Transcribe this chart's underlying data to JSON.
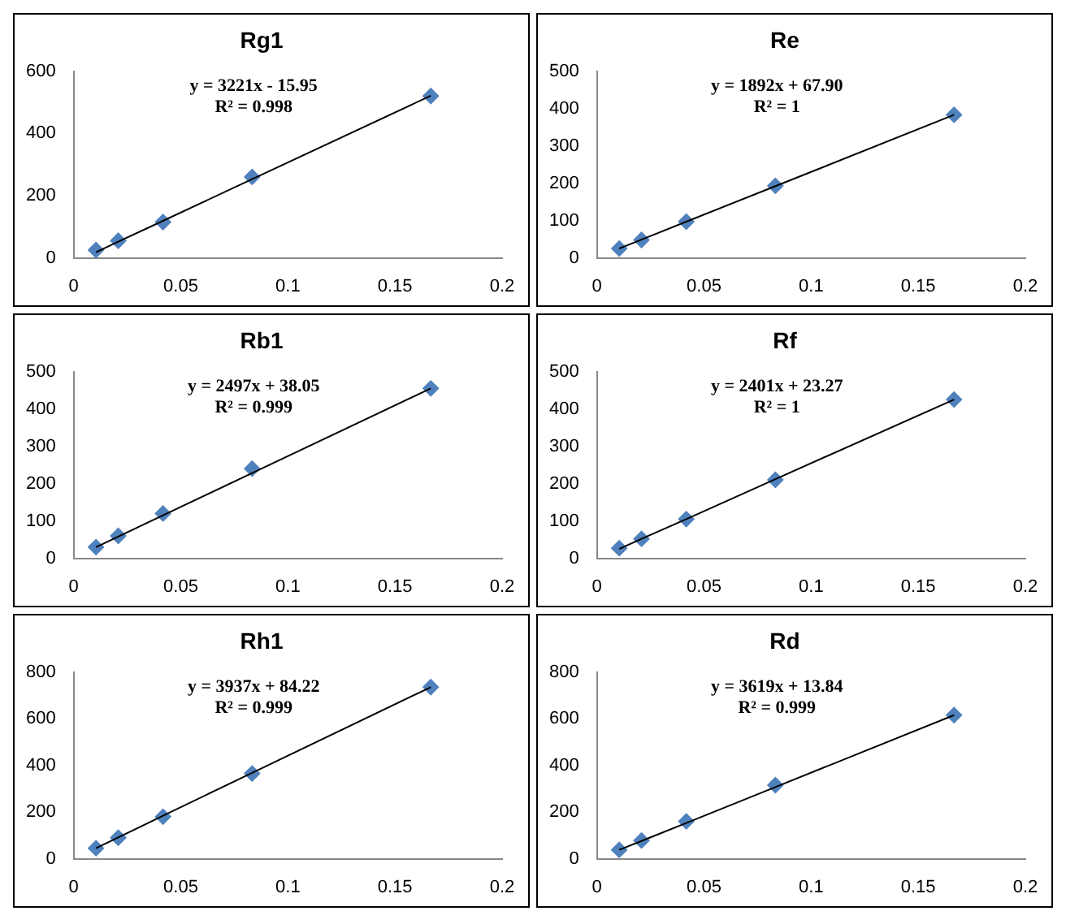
{
  "chart_data": [
    {
      "type": "scatter",
      "title": "Rg1",
      "x": [
        0.0104,
        0.0208,
        0.0417,
        0.0833,
        0.1667
      ],
      "xlim": [
        0,
        0.2
      ],
      "xticks": [
        0,
        0.05,
        0.1,
        0.15,
        0.2
      ],
      "ylim": [
        0,
        600
      ],
      "yticks": [
        0,
        200,
        400,
        600
      ],
      "grid": false,
      "legend": false,
      "marker": "diamond",
      "annotations": [
        "y = 3221x - 15.95",
        "R² = 0.998"
      ],
      "series": [
        {
          "color": "#4f81bd",
          "values": [
            25,
            55,
            115,
            260,
            520
          ]
        },
        {
          "type": "line",
          "values": [
            18,
            52,
            119,
            253,
            521
          ],
          "color": "#000000",
          "marker": "none"
        }
      ]
    },
    {
      "type": "scatter",
      "title": "Re",
      "x": [
        0.0104,
        0.0208,
        0.0417,
        0.0833,
        0.1667
      ],
      "xlim": [
        0,
        0.2
      ],
      "xticks": [
        0,
        0.05,
        0.1,
        0.15,
        0.2
      ],
      "ylim": [
        0,
        500
      ],
      "yticks": [
        0,
        100,
        200,
        300,
        400,
        500
      ],
      "grid": false,
      "legend": false,
      "marker": "diamond",
      "annotations": [
        "y = 1892x + 67.90",
        "R² = 1"
      ],
      "series": [
        {
          "color": "#4f81bd",
          "values": [
            25,
            48,
            97,
            193,
            383
          ]
        },
        {
          "type": "line",
          "values": [
            25,
            49,
            97,
            192,
            383
          ],
          "color": "#000000",
          "marker": "none"
        }
      ]
    },
    {
      "type": "scatter",
      "title": "Rb1",
      "x": [
        0.0104,
        0.0208,
        0.0417,
        0.0833,
        0.1667
      ],
      "xlim": [
        0,
        0.2
      ],
      "xticks": [
        0,
        0.05,
        0.1,
        0.15,
        0.2
      ],
      "ylim": [
        0,
        500
      ],
      "yticks": [
        0,
        100,
        200,
        300,
        400,
        500
      ],
      "grid": false,
      "legend": false,
      "marker": "diamond",
      "annotations": [
        "y = 2497x + 38.05",
        "R² = 0.999"
      ],
      "series": [
        {
          "color": "#4f81bd",
          "values": [
            30,
            60,
            120,
            240,
            455
          ]
        },
        {
          "type": "line",
          "values": [
            30,
            58,
            115,
            228,
            455
          ],
          "color": "#000000",
          "marker": "none"
        }
      ]
    },
    {
      "type": "scatter",
      "title": "Rf",
      "x": [
        0.0104,
        0.0208,
        0.0417,
        0.0833,
        0.1667
      ],
      "xlim": [
        0,
        0.2
      ],
      "xticks": [
        0,
        0.05,
        0.1,
        0.15,
        0.2
      ],
      "ylim": [
        0,
        500
      ],
      "yticks": [
        0,
        100,
        200,
        300,
        400,
        500
      ],
      "grid": false,
      "legend": false,
      "marker": "diamond",
      "annotations": [
        "y = 2401x + 23.27",
        "R² = 1"
      ],
      "series": [
        {
          "color": "#4f81bd",
          "values": [
            27,
            52,
            105,
            210,
            425
          ]
        },
        {
          "type": "line",
          "values": [
            25,
            52,
            105,
            212,
            425
          ],
          "color": "#000000",
          "marker": "none"
        }
      ]
    },
    {
      "type": "scatter",
      "title": "Rh1",
      "x": [
        0.0104,
        0.0208,
        0.0417,
        0.0833,
        0.1667
      ],
      "xlim": [
        0,
        0.2
      ],
      "xticks": [
        0,
        0.05,
        0.1,
        0.15,
        0.2
      ],
      "ylim": [
        0,
        800
      ],
      "yticks": [
        0,
        200,
        400,
        600,
        800
      ],
      "grid": false,
      "legend": false,
      "marker": "diamond",
      "annotations": [
        "y = 3937x + 84.22",
        "R² = 0.999"
      ],
      "series": [
        {
          "color": "#4f81bd",
          "values": [
            45,
            90,
            180,
            365,
            735
          ]
        },
        {
          "type": "line",
          "values": [
            45,
            91,
            184,
            368,
            735
          ],
          "color": "#000000",
          "marker": "none"
        }
      ]
    },
    {
      "type": "scatter",
      "title": "Rd",
      "x": [
        0.0104,
        0.0208,
        0.0417,
        0.0833,
        0.1667
      ],
      "xlim": [
        0,
        0.2
      ],
      "xticks": [
        0,
        0.05,
        0.1,
        0.15,
        0.2
      ],
      "ylim": [
        0,
        800
      ],
      "yticks": [
        0,
        200,
        400,
        600,
        800
      ],
      "grid": false,
      "legend": false,
      "marker": "diamond",
      "annotations": [
        "y = 3619x + 13.84",
        "R² = 0.999"
      ],
      "series": [
        {
          "color": "#4f81bd",
          "values": [
            38,
            78,
            160,
            315,
            615
          ]
        },
        {
          "type": "line",
          "values": [
            38,
            76,
            153,
            307,
            615
          ],
          "color": "#000000",
          "marker": "none"
        }
      ]
    }
  ]
}
